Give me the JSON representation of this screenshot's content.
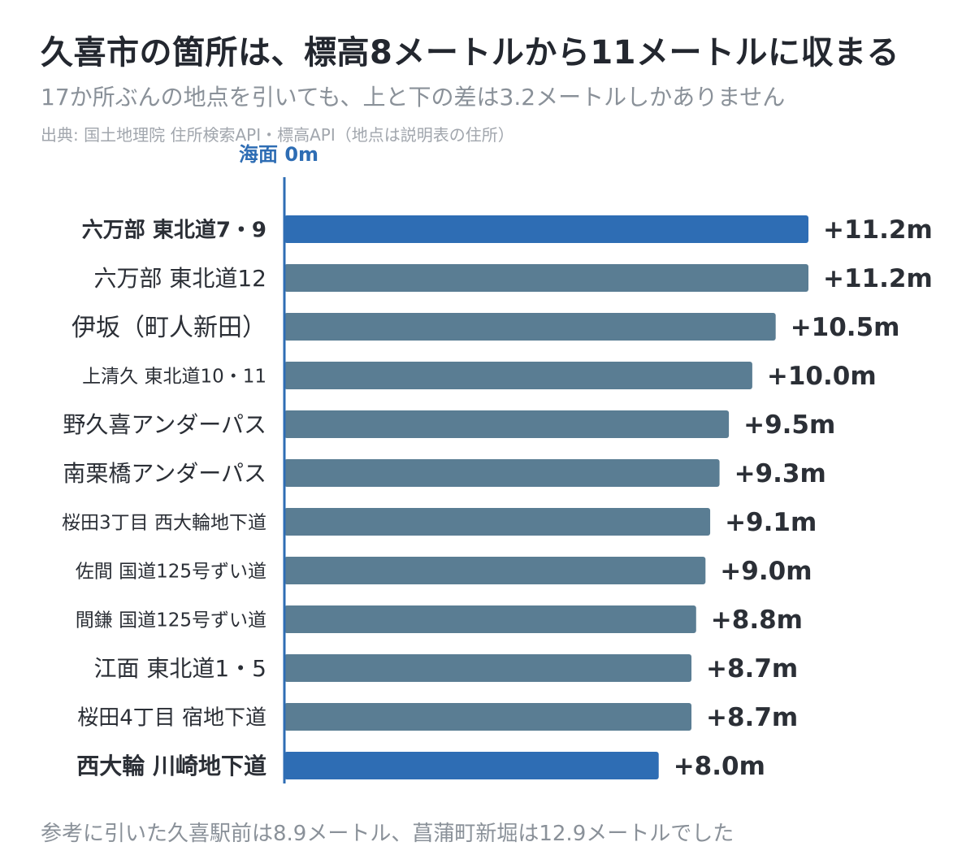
{
  "header": {
    "title": "久喜市の箇所は、標高8メートルから11メートルに収まる",
    "subtitle": "17か所ぶんの地点を引いても、上と下の差は3.2メートルしかありません",
    "source": "出典: 国土地理院 住所検索API・標高API（地点は説明表の住所）"
  },
  "footnote": "参考に引いた久喜駅前は8.9メートル、菖蒲町新堀は12.9メートルでした",
  "colors": {
    "highlight": "#2e6db4",
    "normal": "#5a7d93",
    "axis": "#2e6db4",
    "label": "#2b2f36"
  },
  "chart_data": {
    "type": "bar",
    "orientation": "horizontal",
    "zero_label": "海面 0m",
    "categories": [
      "六万部 東北道7・9",
      "六万部 東北道12",
      "伊坂（町人新田）",
      "上清久 東北道10・11",
      "野久喜アンダーパス",
      "南栗橋アンダーパス",
      "桜田3丁目 西大輪地下道",
      "佐間 国道125号ずい道",
      "間鎌 国道125号ずい道",
      "江面 東北道1・5",
      "桜田4丁目 宿地下道",
      "西大輪 川崎地下道"
    ],
    "values": [
      11.2,
      11.2,
      10.5,
      10.0,
      9.5,
      9.3,
      9.1,
      9.0,
      8.8,
      8.7,
      8.7,
      8.0
    ],
    "value_labels": [
      "+11.2m",
      "+11.2m",
      "+10.5m",
      "+10.0m",
      "+9.5m",
      "+9.3m",
      "+9.1m",
      "+9.0m",
      "+8.8m",
      "+8.7m",
      "+8.7m",
      "+8.0m"
    ],
    "highlighted": [
      true,
      false,
      false,
      false,
      false,
      false,
      false,
      false,
      false,
      false,
      false,
      true
    ],
    "unit": "m",
    "xlim": [
      0,
      11.2
    ],
    "grid": false,
    "legend": "none"
  }
}
